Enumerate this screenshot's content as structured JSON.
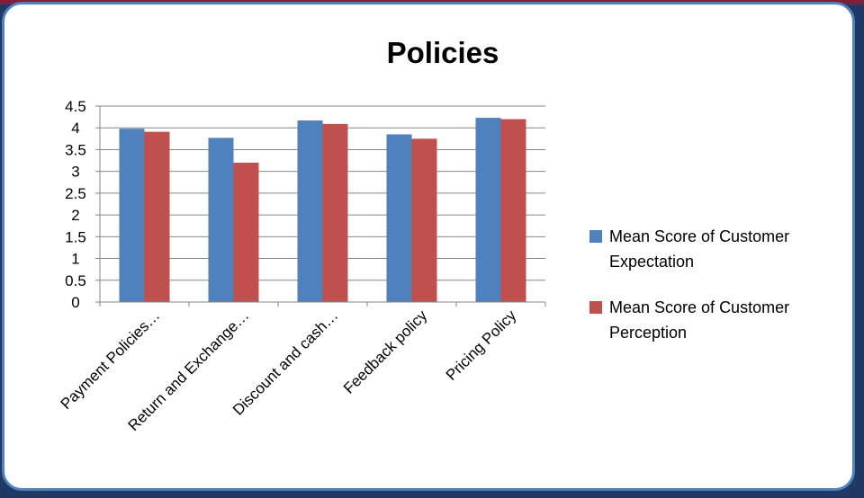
{
  "chart_data": {
    "type": "bar",
    "title": "Policies",
    "categories": [
      "Payment Policies…",
      "Return and Exchange…",
      "Discount and cash…",
      "Feedback policy",
      "Pricing Policy"
    ],
    "series": [
      {
        "name": "Mean Score of Customer Expectation",
        "color": "#4f81bd",
        "values": [
          3.98,
          3.77,
          4.17,
          3.85,
          4.23
        ]
      },
      {
        "name": "Mean Score of Customer Perception",
        "color": "#c0504d",
        "values": [
          3.91,
          3.2,
          4.09,
          3.75,
          4.2
        ]
      }
    ],
    "ylim": [
      0,
      4.5
    ],
    "yticks": [
      "0",
      "0.5",
      "1",
      "1.5",
      "2",
      "2.5",
      "3",
      "3.5",
      "4",
      "4.5"
    ],
    "grid": true,
    "legend": "right"
  }
}
